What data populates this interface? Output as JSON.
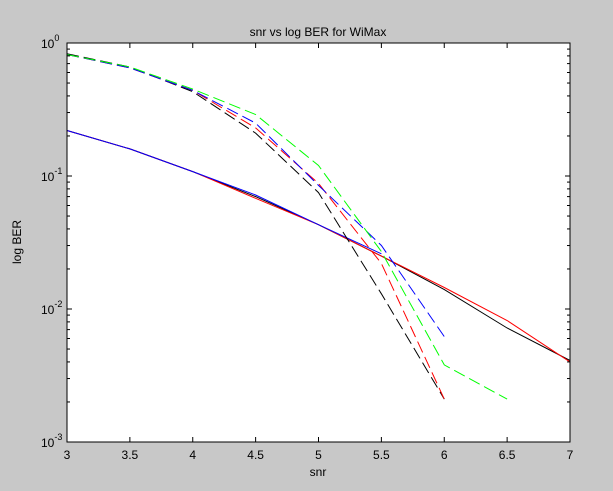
{
  "figure": {
    "background": "#c8c8c8",
    "axes_background": "#ffffff"
  },
  "chart_data": {
    "type": "line",
    "title": "snr vs log BER for WiMax",
    "xlabel": "snr",
    "ylabel": "log BER",
    "xlim": [
      3,
      7
    ],
    "ylim": [
      0.001,
      1
    ],
    "yscale": "log",
    "grid": false,
    "legend": "none",
    "xticks": [
      "3",
      "3.5",
      "4",
      "4.5",
      "5",
      "5.5",
      "6",
      "6.5",
      "7"
    ],
    "yticks": [
      {
        "base": "10",
        "exp": "0",
        "value": 1
      },
      {
        "base": "10",
        "exp": "-1",
        "value": 0.1
      },
      {
        "base": "10",
        "exp": "-2",
        "value": 0.01
      },
      {
        "base": "10",
        "exp": "-3",
        "value": 0.001
      }
    ],
    "series": [
      {
        "color": "#000000",
        "dash": "solid",
        "x": [
          3,
          3.5,
          4,
          4.5,
          5,
          5.5,
          6,
          6.5,
          7
        ],
        "y": [
          0.22,
          0.16,
          0.108,
          0.07,
          0.043,
          0.025,
          0.014,
          0.0072,
          0.0041
        ]
      },
      {
        "color": "#ff0000",
        "dash": "solid",
        "x": [
          3,
          3.5,
          4,
          4.5,
          5,
          5.5,
          6,
          6.5,
          7
        ],
        "y": [
          0.22,
          0.16,
          0.108,
          0.068,
          0.043,
          0.025,
          0.0145,
          0.0082,
          0.004
        ]
      },
      {
        "color": "#0000ff",
        "dash": "solid",
        "x": [
          3,
          3.5,
          4,
          4.5,
          5,
          5.5
        ],
        "y": [
          0.22,
          0.16,
          0.108,
          0.072,
          0.043,
          0.026
        ]
      },
      {
        "color": "#000000",
        "dash": "dashed",
        "x": [
          3,
          3.5,
          4,
          4.5,
          5,
          5.5,
          6
        ],
        "y": [
          0.83,
          0.66,
          0.43,
          0.21,
          0.075,
          0.013,
          0.0021
        ]
      },
      {
        "color": "#ff0000",
        "dash": "dashed",
        "x": [
          3,
          3.5,
          4,
          4.5,
          5,
          5.5,
          6
        ],
        "y": [
          0.82,
          0.65,
          0.44,
          0.23,
          0.088,
          0.022,
          0.0021
        ]
      },
      {
        "color": "#0000ff",
        "dash": "dashed",
        "x": [
          3,
          3.5,
          4,
          4.5,
          5,
          5.5,
          6
        ],
        "y": [
          0.82,
          0.65,
          0.44,
          0.25,
          0.085,
          0.03,
          0.0062
        ]
      },
      {
        "color": "#00ff00",
        "dash": "dashed",
        "x": [
          3,
          3.5,
          4,
          4.5,
          5,
          5.5,
          6,
          6.5
        ],
        "y": [
          0.82,
          0.66,
          0.45,
          0.29,
          0.12,
          0.027,
          0.0038,
          0.0021
        ]
      }
    ]
  }
}
